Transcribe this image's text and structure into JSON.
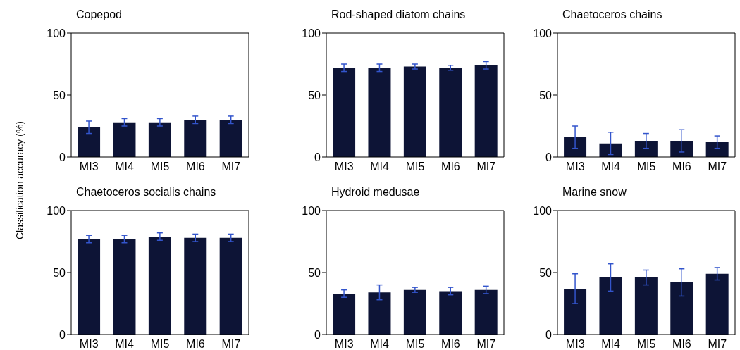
{
  "chart_data": [
    {
      "type": "bar",
      "title": "Copepod",
      "ylabel": "Classification accuracy (%)",
      "categories": [
        "MI3",
        "MI4",
        "MI5",
        "MI6",
        "MI7"
      ],
      "values": [
        24,
        28,
        28,
        30,
        30
      ],
      "errors": [
        5,
        3,
        3,
        3,
        3
      ],
      "color": "#0d1436",
      "ylim": [
        0,
        100
      ],
      "yticks": [
        0,
        50,
        100
      ]
    },
    {
      "type": "bar",
      "title": "Rod-shaped diatom chains",
      "categories": [
        "MI3",
        "MI4",
        "MI5",
        "MI6",
        "MI7"
      ],
      "values": [
        72,
        72,
        73,
        72,
        74
      ],
      "errors": [
        3,
        3,
        2,
        2,
        3
      ],
      "color": "#0d1436",
      "ylim": [
        0,
        100
      ],
      "yticks": [
        0,
        50,
        100
      ]
    },
    {
      "type": "bar",
      "title": "Chaetoceros chains",
      "categories": [
        "MI3",
        "MI4",
        "MI5",
        "MI6",
        "MI7"
      ],
      "values": [
        16,
        11,
        13,
        13,
        12
      ],
      "errors": [
        9,
        9,
        6,
        9,
        5
      ],
      "color": "#0d1436",
      "ylim": [
        0,
        100
      ],
      "yticks": [
        0,
        50,
        100
      ]
    },
    {
      "type": "bar",
      "title": "Chaetoceros socialis chains",
      "categories": [
        "MI3",
        "MI4",
        "MI5",
        "MI6",
        "MI7"
      ],
      "values": [
        77,
        77,
        79,
        78,
        78
      ],
      "errors": [
        3,
        3,
        3,
        3,
        3
      ],
      "color": "#0d1436",
      "ylim": [
        0,
        100
      ],
      "yticks": [
        0,
        50,
        100
      ]
    },
    {
      "type": "bar",
      "title": "Hydroid medusae",
      "categories": [
        "MI3",
        "MI4",
        "MI5",
        "MI6",
        "MI7"
      ],
      "values": [
        33,
        34,
        36,
        35,
        36
      ],
      "errors": [
        3,
        6,
        2,
        3,
        3
      ],
      "color": "#0d1436",
      "ylim": [
        0,
        100
      ],
      "yticks": [
        0,
        50,
        100
      ]
    },
    {
      "type": "bar",
      "title": "Marine snow",
      "categories": [
        "MI3",
        "MI4",
        "MI5",
        "MI6",
        "MI7"
      ],
      "values": [
        37,
        46,
        46,
        42,
        49
      ],
      "errors": [
        12,
        11,
        6,
        11,
        5
      ],
      "color": "#0d1436",
      "ylim": [
        0,
        100
      ],
      "yticks": [
        0,
        50,
        100
      ]
    }
  ]
}
